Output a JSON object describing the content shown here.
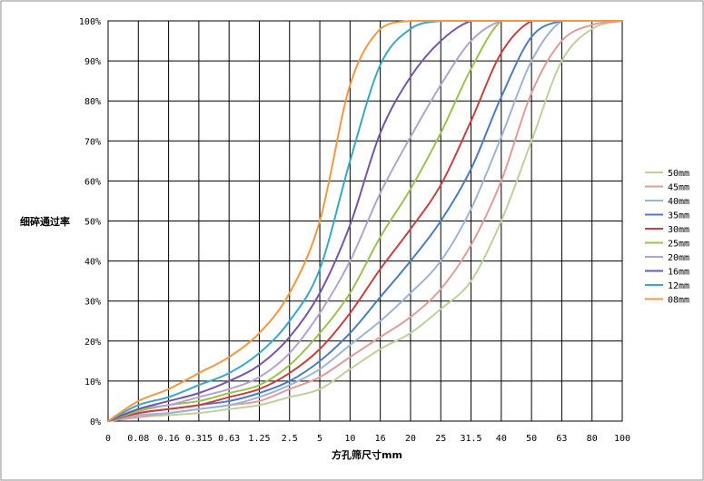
{
  "chart_data": {
    "type": "line",
    "xlabel": "方孔筛尺寸mm",
    "ylabel": "细碎通过率",
    "x": [
      "0",
      "0.08",
      "0.16",
      "0.315",
      "0.63",
      "1.25",
      "2.5",
      "5",
      "10",
      "16",
      "20",
      "25",
      "31.5",
      "40",
      "50",
      "63",
      "80",
      "100"
    ],
    "yticks": [
      "0%",
      "10%",
      "20%",
      "30%",
      "40%",
      "50%",
      "60%",
      "70%",
      "80%",
      "90%",
      "100%"
    ],
    "ylim": [
      0,
      100
    ],
    "grid": "vertical and horizontal",
    "legend_position": "right",
    "series": [
      {
        "name": "50mm",
        "color": "#bcd29a",
        "values": [
          0,
          1,
          1.5,
          2,
          3,
          4,
          6,
          8,
          13,
          18,
          22,
          28,
          35,
          50,
          70,
          90,
          98,
          100
        ]
      },
      {
        "name": "45mm",
        "color": "#e09d9a",
        "values": [
          0,
          1,
          2,
          3,
          4,
          5,
          8,
          11,
          16,
          21,
          26,
          33,
          44,
          60,
          82,
          95,
          99,
          100
        ]
      },
      {
        "name": "40mm",
        "color": "#9db4d8",
        "values": [
          0,
          1.5,
          2,
          3,
          4,
          6,
          9,
          13,
          19,
          25,
          32,
          40,
          53,
          71,
          90,
          100,
          100,
          100
        ]
      },
      {
        "name": "35mm",
        "color": "#4a7cc2",
        "values": [
          0,
          2,
          3,
          4,
          5,
          7,
          10,
          15,
          22,
          31,
          40,
          50,
          63,
          81,
          96,
          100,
          100,
          100
        ]
      },
      {
        "name": "30mm",
        "color": "#c8413e",
        "values": [
          0,
          2,
          3,
          4,
          6,
          8,
          12,
          18,
          27,
          38,
          48,
          59,
          75,
          92,
          100,
          100,
          100,
          100
        ]
      },
      {
        "name": "25mm",
        "color": "#9bc24f",
        "values": [
          0,
          2.5,
          4,
          5,
          7,
          9,
          14,
          22,
          32,
          46,
          58,
          72,
          88,
          100,
          100,
          100,
          100,
          100
        ]
      },
      {
        "name": "20mm",
        "color": "#b2a3d0",
        "values": [
          0,
          3,
          4,
          6,
          8,
          11,
          17,
          27,
          40,
          57,
          71,
          84,
          95,
          100,
          100,
          100,
          100,
          100
        ]
      },
      {
        "name": "16mm",
        "color": "#7556a6",
        "values": [
          0,
          3,
          5,
          7,
          10,
          14,
          21,
          32,
          49,
          72,
          86,
          95,
          100,
          100,
          100,
          100,
          100,
          100
        ]
      },
      {
        "name": "12mm",
        "color": "#38a9c3",
        "values": [
          0,
          4,
          6,
          9,
          12,
          17,
          25,
          38,
          65,
          89,
          98,
          100,
          100,
          100,
          100,
          100,
          100,
          100
        ]
      },
      {
        "name": "08mm",
        "color": "#f5973e",
        "values": [
          0,
          5,
          8,
          12,
          16,
          22,
          32,
          50,
          84,
          98,
          100,
          100,
          100,
          100,
          100,
          100,
          100,
          100
        ]
      }
    ]
  }
}
